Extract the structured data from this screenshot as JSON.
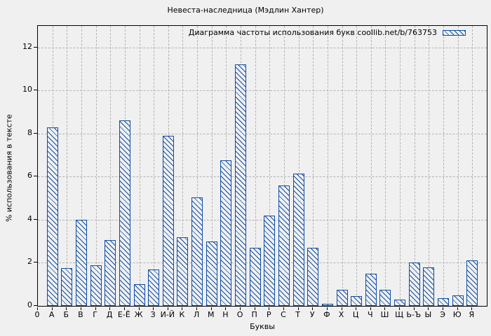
{
  "figure": {
    "background": "#f0f0f0"
  },
  "chart_data": {
    "type": "bar",
    "title": "Невеста-наследница (Мэдлин Хантер)",
    "legend": {
      "label": "Диаграмма частоты использования букв coollib.net/b/763753",
      "swatch": "hatched-bar",
      "position": "top-right inside plot"
    },
    "xlabel": "Буквы",
    "ylabel": "% использования в тексте",
    "x_origin_label": "0",
    "categories": [
      "А",
      "Б",
      "В",
      "Г",
      "Д",
      "Е-Ё",
      "Ж",
      "З",
      "И-Й",
      "К",
      "Л",
      "М",
      "Н",
      "О",
      "П",
      "Р",
      "С",
      "Т",
      "У",
      "Ф",
      "Х",
      "Ц",
      "Ч",
      "Ш",
      "Щ",
      "Ь-Ъ",
      "Ы",
      "Э",
      "Ю",
      "Я"
    ],
    "values": [
      8.3,
      1.75,
      4.0,
      1.9,
      3.05,
      8.6,
      1.0,
      1.7,
      7.9,
      3.2,
      5.05,
      3.0,
      6.75,
      11.2,
      2.7,
      4.2,
      5.6,
      6.15,
      2.7,
      0.1,
      0.75,
      0.45,
      1.5,
      0.75,
      0.3,
      2.0,
      1.8,
      0.35,
      0.5,
      2.1
    ],
    "yticks": [
      0,
      2,
      4,
      6,
      8,
      10,
      12
    ],
    "ylim": [
      0,
      13
    ],
    "grid": "dashed, both axes",
    "bar_style": "diagonal-hatch, unfilled",
    "colors": {
      "bar": "#0e4da6",
      "grid": "#b3b3b3",
      "axis": "#000000",
      "text": "#000000",
      "plot_background": "#f0f0f0"
    }
  }
}
